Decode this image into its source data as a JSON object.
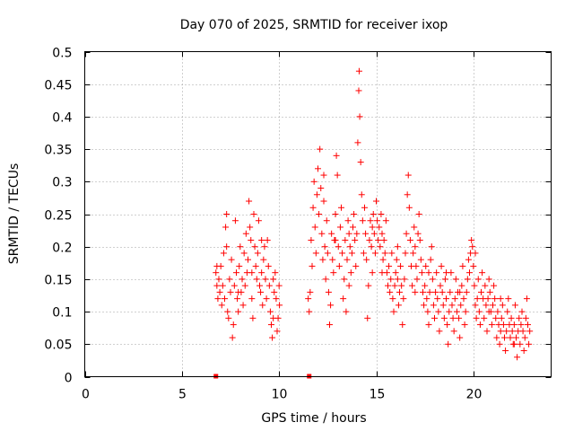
{
  "chart_data": {
    "type": "scatter",
    "title": "Day 070 of 2025, SRMTID for receiver ixop",
    "xlabel": "GPS time / hours",
    "ylabel": "SRMTID / TECUs",
    "xlim": [
      0,
      24
    ],
    "ylim": [
      0,
      0.5
    ],
    "xticks": [
      "0",
      "5",
      "10",
      "15",
      "20"
    ],
    "yticks": [
      "0",
      "0.05",
      "0.1",
      "0.15",
      "0.2",
      "0.25",
      "0.3",
      "0.35",
      "0.4",
      "0.45",
      "0.5"
    ],
    "grid": true,
    "series": [
      {
        "name": "SRMTID",
        "color": "#ff0000",
        "marker": "plus",
        "points": [
          [
            6.75,
            0.16
          ],
          [
            6.8,
            0.14
          ],
          [
            6.85,
            0.12
          ],
          [
            6.9,
            0.15
          ],
          [
            6.95,
            0.13
          ],
          [
            7.0,
            0.17
          ],
          [
            7.05,
            0.11
          ],
          [
            7.1,
            0.14
          ],
          [
            7.15,
            0.19
          ],
          [
            7.2,
            0.12
          ],
          [
            7.25,
            0.23
          ],
          [
            7.3,
            0.25
          ],
          [
            7.35,
            0.1
          ],
          [
            7.4,
            0.09
          ],
          [
            7.45,
            0.15
          ],
          [
            7.5,
            0.13
          ],
          [
            7.55,
            0.18
          ],
          [
            7.6,
            0.06
          ],
          [
            7.65,
            0.08
          ],
          [
            7.7,
            0.14
          ],
          [
            7.75,
            0.24
          ],
          [
            7.8,
            0.16
          ],
          [
            7.85,
            0.12
          ],
          [
            7.9,
            0.1
          ],
          [
            7.95,
            0.17
          ],
          [
            8.0,
            0.2
          ],
          [
            8.05,
            0.13
          ],
          [
            8.1,
            0.15
          ],
          [
            8.15,
            0.11
          ],
          [
            8.2,
            0.19
          ],
          [
            8.25,
            0.14
          ],
          [
            8.3,
            0.22
          ],
          [
            8.35,
            0.16
          ],
          [
            8.4,
            0.18
          ],
          [
            8.45,
            0.27
          ],
          [
            8.5,
            0.23
          ],
          [
            8.55,
            0.21
          ],
          [
            8.6,
            0.12
          ],
          [
            8.65,
            0.09
          ],
          [
            8.7,
            0.25
          ],
          [
            8.75,
            0.2
          ],
          [
            8.8,
            0.17
          ],
          [
            8.85,
            0.15
          ],
          [
            8.9,
            0.19
          ],
          [
            8.95,
            0.24
          ],
          [
            9.0,
            0.14
          ],
          [
            9.05,
            0.13
          ],
          [
            9.1,
            0.16
          ],
          [
            9.15,
            0.11
          ],
          [
            9.2,
            0.18
          ],
          [
            9.25,
            0.2
          ],
          [
            9.3,
            0.15
          ],
          [
            9.35,
            0.12
          ],
          [
            9.4,
            0.21
          ],
          [
            9.45,
            0.17
          ],
          [
            9.5,
            0.14
          ],
          [
            9.55,
            0.1
          ],
          [
            9.6,
            0.08
          ],
          [
            9.65,
            0.06
          ],
          [
            9.7,
            0.09
          ],
          [
            9.75,
            0.13
          ],
          [
            9.8,
            0.16
          ],
          [
            9.85,
            0.12
          ],
          [
            9.9,
            0.07
          ],
          [
            9.95,
            0.09
          ],
          [
            10.0,
            0.14
          ],
          [
            10.02,
            0.11
          ],
          [
            11.5,
            0.12
          ],
          [
            11.55,
            0.1
          ],
          [
            11.6,
            0.13
          ],
          [
            11.65,
            0.21
          ],
          [
            11.7,
            0.17
          ],
          [
            11.75,
            0.26
          ],
          [
            11.8,
            0.3
          ],
          [
            11.85,
            0.23
          ],
          [
            11.9,
            0.19
          ],
          [
            11.95,
            0.28
          ],
          [
            12.0,
            0.32
          ],
          [
            12.05,
            0.25
          ],
          [
            12.1,
            0.35
          ],
          [
            12.15,
            0.29
          ],
          [
            12.2,
            0.22
          ],
          [
            12.25,
            0.18
          ],
          [
            12.3,
            0.27
          ],
          [
            12.35,
            0.2
          ],
          [
            12.4,
            0.15
          ],
          [
            12.45,
            0.24
          ],
          [
            12.5,
            0.19
          ],
          [
            12.55,
            0.13
          ],
          [
            12.6,
            0.08
          ],
          [
            12.65,
            0.11
          ],
          [
            12.7,
            0.22
          ],
          [
            12.75,
            0.18
          ],
          [
            12.8,
            0.16
          ],
          [
            12.85,
            0.21
          ],
          [
            12.9,
            0.25
          ],
          [
            12.95,
            0.34
          ],
          [
            13.0,
            0.31
          ],
          [
            13.05,
            0.2
          ],
          [
            13.1,
            0.17
          ],
          [
            13.15,
            0.23
          ],
          [
            13.2,
            0.26
          ],
          [
            13.25,
            0.19
          ],
          [
            13.3,
            0.12
          ],
          [
            13.35,
            0.15
          ],
          [
            13.4,
            0.21
          ],
          [
            13.45,
            0.1
          ],
          [
            13.5,
            0.18
          ],
          [
            13.55,
            0.24
          ],
          [
            13.6,
            0.22
          ],
          [
            13.65,
            0.2
          ],
          [
            13.7,
            0.16
          ],
          [
            13.75,
            0.19
          ],
          [
            13.8,
            0.23
          ],
          [
            13.85,
            0.25
          ],
          [
            13.9,
            0.21
          ],
          [
            13.95,
            0.17
          ],
          [
            14.0,
            0.22
          ],
          [
            14.05,
            0.36
          ],
          [
            14.1,
            0.44
          ],
          [
            14.12,
            0.47
          ],
          [
            14.15,
            0.4
          ],
          [
            14.2,
            0.33
          ],
          [
            14.25,
            0.28
          ],
          [
            14.3,
            0.24
          ],
          [
            14.35,
            0.19
          ],
          [
            14.4,
            0.26
          ],
          [
            14.45,
            0.22
          ],
          [
            14.5,
            0.18
          ],
          [
            14.55,
            0.09
          ],
          [
            14.6,
            0.14
          ],
          [
            14.65,
            0.21
          ],
          [
            14.7,
            0.24
          ],
          [
            14.75,
            0.2
          ],
          [
            14.8,
            0.23
          ],
          [
            14.85,
            0.25
          ],
          [
            14.9,
            0.22
          ],
          [
            14.95,
            0.19
          ],
          [
            15.0,
            0.27
          ],
          [
            15.05,
            0.24
          ],
          [
            15.1,
            0.21
          ],
          [
            15.15,
            0.23
          ],
          [
            15.2,
            0.2
          ],
          [
            15.25,
            0.25
          ],
          [
            15.3,
            0.22
          ],
          [
            15.35,
            0.18
          ],
          [
            15.4,
            0.21
          ],
          [
            15.45,
            0.19
          ],
          [
            15.5,
            0.24
          ],
          [
            15.55,
            0.16
          ],
          [
            15.6,
            0.14
          ],
          [
            15.65,
            0.17
          ],
          [
            15.7,
            0.13
          ],
          [
            15.75,
            0.15
          ],
          [
            15.8,
            0.19
          ],
          [
            15.85,
            0.12
          ],
          [
            15.9,
            0.1
          ],
          [
            15.95,
            0.14
          ],
          [
            16.0,
            0.16
          ],
          [
            16.05,
            0.18
          ],
          [
            16.1,
            0.15
          ],
          [
            16.15,
            0.11
          ],
          [
            16.2,
            0.13
          ],
          [
            16.25,
            0.17
          ],
          [
            16.3,
            0.14
          ],
          [
            16.35,
            0.08
          ],
          [
            16.4,
            0.12
          ],
          [
            16.45,
            0.15
          ],
          [
            16.5,
            0.19
          ],
          [
            16.55,
            0.22
          ],
          [
            16.6,
            0.28
          ],
          [
            16.65,
            0.31
          ],
          [
            16.7,
            0.26
          ],
          [
            16.75,
            0.21
          ],
          [
            16.8,
            0.17
          ],
          [
            16.85,
            0.14
          ],
          [
            16.9,
            0.19
          ],
          [
            16.95,
            0.23
          ],
          [
            17.0,
            0.2
          ],
          [
            17.05,
            0.17
          ],
          [
            17.1,
            0.15
          ],
          [
            17.15,
            0.22
          ],
          [
            17.2,
            0.25
          ],
          [
            17.25,
            0.21
          ],
          [
            17.3,
            0.18
          ],
          [
            17.35,
            0.16
          ],
          [
            17.4,
            0.13
          ],
          [
            17.45,
            0.11
          ],
          [
            17.5,
            0.14
          ],
          [
            17.55,
            0.17
          ],
          [
            17.6,
            0.12
          ],
          [
            17.65,
            0.1
          ],
          [
            17.7,
            0.08
          ],
          [
            17.75,
            0.13
          ],
          [
            17.8,
            0.18
          ],
          [
            17.85,
            0.2
          ],
          [
            17.9,
            0.15
          ],
          [
            17.95,
            0.11
          ],
          [
            18.0,
            0.09
          ],
          [
            18.05,
            0.13
          ],
          [
            18.1,
            0.16
          ],
          [
            18.15,
            0.12
          ],
          [
            18.2,
            0.1
          ],
          [
            18.25,
            0.07
          ],
          [
            18.3,
            0.14
          ],
          [
            18.35,
            0.17
          ],
          [
            18.4,
            0.13
          ],
          [
            18.45,
            0.11
          ],
          [
            18.5,
            0.09
          ],
          [
            18.55,
            0.15
          ],
          [
            18.6,
            0.12
          ],
          [
            18.65,
            0.08
          ],
          [
            18.7,
            0.05
          ],
          [
            18.75,
            0.1
          ],
          [
            18.8,
            0.13
          ],
          [
            18.85,
            0.16
          ],
          [
            18.9,
            0.11
          ],
          [
            18.95,
            0.09
          ],
          [
            19.0,
            0.07
          ],
          [
            19.05,
            0.12
          ],
          [
            19.1,
            0.15
          ],
          [
            19.15,
            0.1
          ],
          [
            19.2,
            0.13
          ],
          [
            19.25,
            0.09
          ],
          [
            19.3,
            0.06
          ],
          [
            19.35,
            0.11
          ],
          [
            19.4,
            0.14
          ],
          [
            19.45,
            0.17
          ],
          [
            19.5,
            0.12
          ],
          [
            19.55,
            0.08
          ],
          [
            19.6,
            0.1
          ],
          [
            19.65,
            0.13
          ],
          [
            19.7,
            0.15
          ],
          [
            19.75,
            0.18
          ],
          [
            19.8,
            0.16
          ],
          [
            19.85,
            0.19
          ],
          [
            19.9,
            0.21
          ],
          [
            19.95,
            0.2
          ],
          [
            20.0,
            0.17
          ],
          [
            20.05,
            0.14
          ],
          [
            20.1,
            0.11
          ],
          [
            20.15,
            0.09
          ],
          [
            20.2,
            0.12
          ],
          [
            20.25,
            0.15
          ],
          [
            20.3,
            0.1
          ],
          [
            20.35,
            0.08
          ],
          [
            20.4,
            0.13
          ],
          [
            20.45,
            0.16
          ],
          [
            20.5,
            0.12
          ],
          [
            20.55,
            0.09
          ],
          [
            20.6,
            0.14
          ],
          [
            20.65,
            0.11
          ],
          [
            20.7,
            0.07
          ],
          [
            20.75,
            0.12
          ],
          [
            20.8,
            0.15
          ],
          [
            20.85,
            0.13
          ],
          [
            20.9,
            0.1
          ],
          [
            20.95,
            0.08
          ],
          [
            21.0,
            0.11
          ],
          [
            21.05,
            0.14
          ],
          [
            21.1,
            0.12
          ],
          [
            21.15,
            0.09
          ],
          [
            21.2,
            0.06
          ],
          [
            21.25,
            0.1
          ],
          [
            21.3,
            0.08
          ],
          [
            21.35,
            0.05
          ],
          [
            21.4,
            0.07
          ],
          [
            21.45,
            0.09
          ],
          [
            21.5,
            0.11
          ],
          [
            21.55,
            0.08
          ],
          [
            21.6,
            0.06
          ],
          [
            21.65,
            0.04
          ],
          [
            21.7,
            0.07
          ],
          [
            21.75,
            0.1
          ],
          [
            21.8,
            0.12
          ],
          [
            21.85,
            0.08
          ],
          [
            21.9,
            0.06
          ],
          [
            21.95,
            0.09
          ],
          [
            22.0,
            0.07
          ],
          [
            22.05,
            0.05
          ],
          [
            22.1,
            0.08
          ],
          [
            22.15,
            0.11
          ],
          [
            22.2,
            0.06
          ],
          [
            22.25,
            0.03
          ],
          [
            22.3,
            0.07
          ],
          [
            22.35,
            0.09
          ],
          [
            22.4,
            0.05
          ],
          [
            22.45,
            0.08
          ],
          [
            22.5,
            0.1
          ],
          [
            22.55,
            0.07
          ],
          [
            22.6,
            0.04
          ],
          [
            22.65,
            0.06
          ],
          [
            22.7,
            0.09
          ],
          [
            22.75,
            0.12
          ],
          [
            22.8,
            0.08
          ],
          [
            22.85,
            0.05
          ],
          [
            22.9,
            0.07
          ],
          [
            6.8,
            0.17
          ],
          [
            7.3,
            0.2
          ],
          [
            7.9,
            0.13
          ],
          [
            8.6,
            0.16
          ],
          [
            9.1,
            0.21
          ],
          [
            9.7,
            0.15
          ],
          [
            12.3,
            0.31
          ],
          [
            12.9,
            0.21
          ],
          [
            13.6,
            0.14
          ],
          [
            14.8,
            0.16
          ],
          [
            15.3,
            0.16
          ],
          [
            16.1,
            0.2
          ],
          [
            17.0,
            0.13
          ],
          [
            17.7,
            0.16
          ],
          [
            18.6,
            0.16
          ],
          [
            19.3,
            0.13
          ],
          [
            20.1,
            0.19
          ],
          [
            20.8,
            0.1
          ],
          [
            21.4,
            0.12
          ],
          [
            22.1,
            0.05
          ]
        ]
      }
    ],
    "zero_markers_x": [
      6.75,
      11.55
    ]
  }
}
